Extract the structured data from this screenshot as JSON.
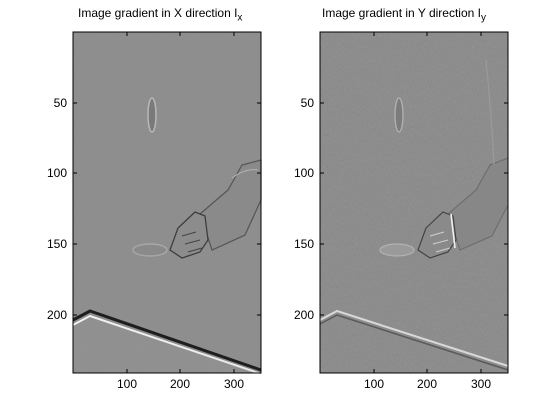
{
  "panels": [
    {
      "id": "left",
      "title_main": "Image gradient in X direction I",
      "title_sub": "x",
      "yticks": [
        "50",
        "100",
        "150",
        "200"
      ],
      "xticks": [
        "100",
        "200",
        "300"
      ]
    },
    {
      "id": "right",
      "title_main": "Image gradient in Y direction I",
      "title_sub": "y",
      "yticks": [
        "50",
        "100",
        "150",
        "200"
      ],
      "xticks": [
        "100",
        "200",
        "300"
      ]
    }
  ],
  "colors": {
    "background": "#ffffff",
    "image_gray": "#878787",
    "axis": "#000000"
  }
}
